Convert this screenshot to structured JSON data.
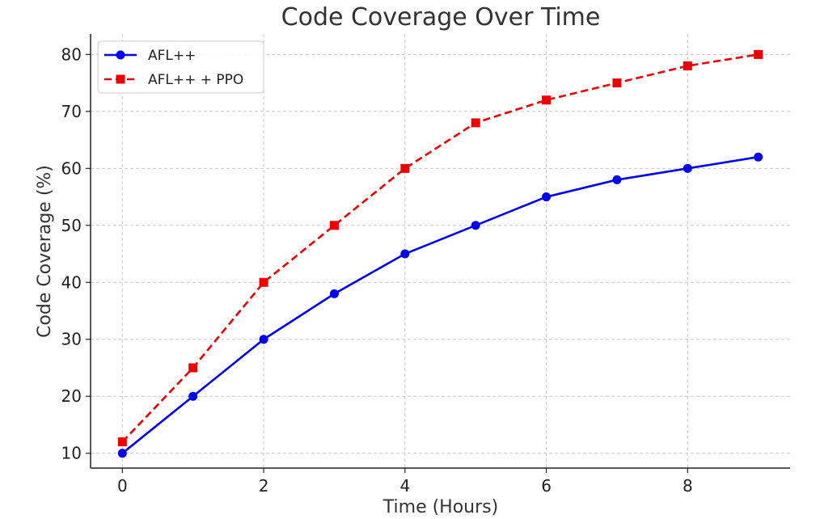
{
  "chart_data": {
    "type": "line",
    "title": "Code Coverage Over Time",
    "xlabel": "Time (Hours)",
    "ylabel": "Code Coverage (%)",
    "xlim": [
      -0.45,
      9.45
    ],
    "ylim": [
      7.4,
      83.6
    ],
    "xticks": [
      0,
      2,
      4,
      6,
      8
    ],
    "yticks": [
      10,
      20,
      30,
      40,
      50,
      60,
      70,
      80
    ],
    "grid": true,
    "legend_position": "upper-left",
    "x": [
      0,
      1,
      2,
      3,
      4,
      5,
      6,
      7,
      8,
      9
    ],
    "series": [
      {
        "name": "AFL++",
        "values": [
          10,
          20,
          30,
          38,
          45,
          50,
          55,
          58,
          60,
          62
        ],
        "color": "#0000ee",
        "marker": "circle",
        "linestyle": "solid"
      },
      {
        "name": "AFL++ + PPO",
        "values": [
          12,
          25,
          40,
          50,
          60,
          68,
          72,
          75,
          78,
          80
        ],
        "color": "#ee0000",
        "marker": "square",
        "linestyle": "dashed"
      }
    ]
  }
}
